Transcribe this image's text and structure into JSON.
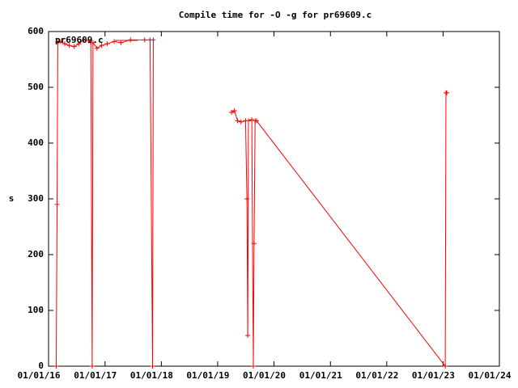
{
  "chart_data": {
    "type": "line",
    "title": "Compile time for -O -g for pr69609.c",
    "ylabel": "s",
    "x": [
      "2016-02-20",
      "2016-02-25",
      "2016-03-01",
      "2016-03-20",
      "2016-04-15",
      "2016-05-15",
      "2016-06-15",
      "2016-07-15",
      "2016-08-15",
      "2016-09-15",
      "2016-10-01",
      "2016-10-10",
      "2016-10-15",
      "2016-11-10",
      "2016-12-10",
      "2017-01-15",
      "2017-03-01",
      "2017-04-15",
      "2017-06-15",
      "2017-09-15",
      "2017-10-20",
      "2017-11-05",
      "2017-11-10",
      "2018-06-01",
      "2019-04-01",
      "2019-04-20",
      "2019-05-10",
      "2019-06-01",
      "2019-07-01",
      "2019-07-10",
      "2019-07-15",
      "2019-07-20",
      "2019-08-10",
      "2019-08-20",
      "2019-08-25",
      "2019-09-01",
      "2019-09-10",
      "2023-01-15",
      "2023-01-20",
      "2023-01-25"
    ],
    "series": [
      {
        "name": "pr69609.c",
        "color": "#ff0000",
        "values": [
          0,
          290,
          580,
          582,
          578,
          575,
          573,
          578,
          585,
          584,
          580,
          0,
          580,
          570,
          575,
          578,
          582,
          580,
          585,
          585,
          585,
          0,
          585,
          null,
          455,
          458,
          440,
          438,
          440,
          300,
          55,
          440,
          442,
          0,
          220,
          440,
          440,
          0,
          490,
          490
        ]
      }
    ],
    "xlim": [
      "2016-01-01",
      "2024-01-01"
    ],
    "xticks": [
      {
        "value": "2016-01-01",
        "label": "01/01/16"
      },
      {
        "value": "2017-01-01",
        "label": "01/01/17"
      },
      {
        "value": "2018-01-01",
        "label": "01/01/18"
      },
      {
        "value": "2019-01-01",
        "label": "01/01/19"
      },
      {
        "value": "2020-01-01",
        "label": "01/01/20"
      },
      {
        "value": "2021-01-01",
        "label": "01/01/21"
      },
      {
        "value": "2022-01-01",
        "label": "01/01/22"
      },
      {
        "value": "2023-01-01",
        "label": "01/01/23"
      },
      {
        "value": "2024-01-01",
        "label": "01/01/24"
      }
    ],
    "ylim": [
      0,
      600
    ],
    "yticks": [
      0,
      100,
      200,
      300,
      400,
      500,
      600
    ],
    "legend": "top-left"
  }
}
